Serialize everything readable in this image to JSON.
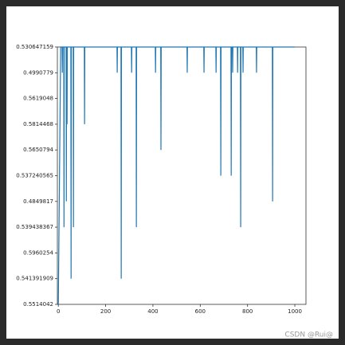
{
  "chart_data": {
    "type": "line",
    "color": "#1f77b4",
    "categories": [
      "0.5514042",
      "0.541391909",
      "0.5960254",
      "0.539438367",
      "0.4849817",
      "0.537240565",
      "0.5650794",
      "0.5814468",
      "0.5619048",
      "0.4990779",
      "0.530647159"
    ],
    "x": [
      0,
      10,
      16,
      17,
      18,
      23,
      24,
      25,
      33,
      34,
      35,
      36,
      37,
      38,
      53,
      54,
      55,
      63,
      64,
      65,
      110,
      111,
      112,
      248,
      249,
      250,
      265,
      266,
      267,
      309,
      310,
      311,
      329,
      330,
      331,
      410,
      411,
      412,
      433,
      434,
      435,
      544,
      545,
      546,
      615,
      616,
      617,
      666,
      667,
      668,
      686,
      687,
      688,
      730,
      731,
      732,
      736,
      737,
      738,
      757,
      758,
      759,
      770,
      771,
      772,
      780,
      781,
      782,
      837,
      838,
      839,
      905,
      906,
      907,
      1000
    ],
    "values": [
      "0.5514042",
      "0.530647159",
      "0.530647159",
      "0.4990779",
      "0.530647159",
      "0.530647159",
      "0.539438367",
      "0.530647159",
      "0.530647159",
      "0.4849817",
      "0.530647159",
      "0.530647159",
      "0.5814468",
      "0.530647159",
      "0.530647159",
      "0.541391909",
      "0.530647159",
      "0.530647159",
      "0.539438367",
      "0.530647159",
      "0.530647159",
      "0.5814468",
      "0.530647159",
      "0.530647159",
      "0.4990779",
      "0.530647159",
      "0.530647159",
      "0.541391909",
      "0.530647159",
      "0.530647159",
      "0.4990779",
      "0.530647159",
      "0.530647159",
      "0.539438367",
      "0.530647159",
      "0.530647159",
      "0.4990779",
      "0.530647159",
      "0.530647159",
      "0.5650794",
      "0.530647159",
      "0.530647159",
      "0.4990779",
      "0.530647159",
      "0.530647159",
      "0.4990779",
      "0.530647159",
      "0.530647159",
      "0.4990779",
      "0.530647159",
      "0.530647159",
      "0.537240565",
      "0.530647159",
      "0.530647159",
      "0.537240565",
      "0.530647159",
      "0.530647159",
      "0.4990779",
      "0.530647159",
      "0.530647159",
      "0.4990779",
      "0.530647159",
      "0.530647159",
      "0.539438367",
      "0.530647159",
      "0.530647159",
      "0.4990779",
      "0.530647159",
      "0.530647159",
      "0.4990779",
      "0.530647159",
      "0.530647159",
      "0.4849817",
      "0.530647159",
      "0.530647159"
    ],
    "xlim": [
      -4,
      1047
    ],
    "xticks": [
      0,
      200,
      400,
      600,
      800,
      1000
    ]
  },
  "watermark": "CSDN @Rui@"
}
